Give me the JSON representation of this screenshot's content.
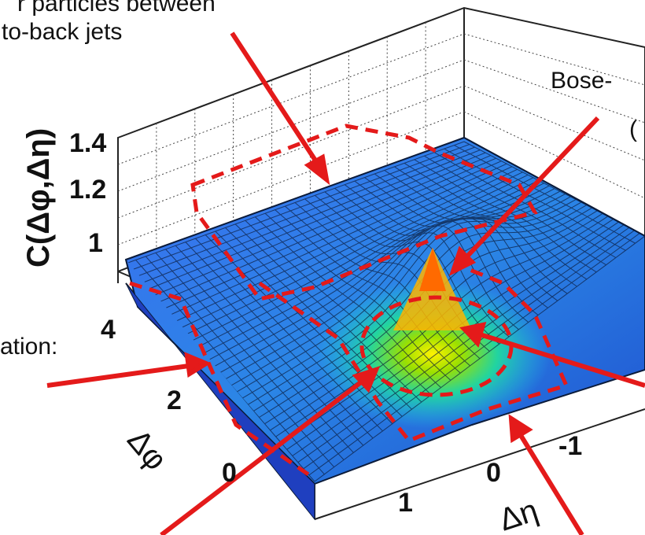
{
  "chart_data": {
    "type": "surface",
    "zlabel": "C(Δφ,Δη)",
    "xlabel": "Δη",
    "ylabel": "Δφ",
    "z_ticks": [
      "1",
      "1.2",
      "1.4"
    ],
    "phi_ticks": [
      "0",
      "2",
      "4"
    ],
    "eta_ticks": [
      "1",
      "0",
      "-1"
    ],
    "zlim": [
      0.9,
      1.45
    ],
    "peak": {
      "dphi": 0,
      "deta": 0,
      "value": 1.3
    },
    "grid": "dotted"
  },
  "annotations": {
    "top_left_line1": "r particles between",
    "top_left_line2": "to-back jets",
    "top_right_line1": "Bose-",
    "top_right_line2": "(",
    "left_mid": "ation:"
  },
  "colors": {
    "arrow": "#e41a1a",
    "surface_low": "#2a4fd0",
    "surface_mid": "#1ec4e8",
    "surface_peak": "#ff7a00",
    "mesh": "#0b1b3a"
  }
}
